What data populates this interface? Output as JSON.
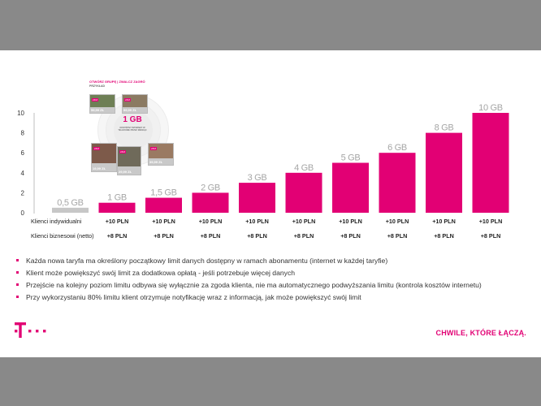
{
  "chart_data": {
    "type": "bar",
    "categories": [
      "0,5 GB",
      "1 GB",
      "1,5 GB",
      "2 GB",
      "3 GB",
      "4 GB",
      "5 GB",
      "6 GB",
      "8 GB",
      "10 GB"
    ],
    "values": [
      0.5,
      1,
      1.5,
      2,
      3,
      4,
      5,
      6,
      8,
      10
    ],
    "data_labels": [
      "0,5 GB",
      "1 GB",
      "1,5 GB",
      "2 GB",
      "3 GB",
      "4 GB",
      "5 GB",
      "6 GB",
      "8 GB",
      "10 GB"
    ],
    "yticks": [
      "0",
      "2",
      "4",
      "6",
      "8",
      "10"
    ],
    "ylim": [
      0,
      10
    ],
    "grid": false,
    "colors": {
      "bar": "#e20074",
      "first_bar": "#c7c7c7",
      "label": "#a6a6a6"
    },
    "table": {
      "rows": [
        {
          "label": "Klienci indywidualni",
          "cells": [
            "",
            "+10 PLN",
            "+10 PLN",
            "+10 PLN",
            "+10 PLN",
            "+10 PLN",
            "+10 PLN",
            "+10 PLN",
            "+10 PLN",
            "+10 PLN"
          ]
        },
        {
          "label": "Klienci biznesowi (netto)",
          "cells": [
            "",
            "+8 PLN",
            "+8 PLN",
            "+8 PLN",
            "+8 PLN",
            "+8 PLN",
            "+8 PLN",
            "+8 PLN",
            "+8 PLN",
            "+8 PLN"
          ]
        }
      ]
    }
  },
  "infographic": {
    "title": "OTWÓRZ GRUPĘ | ZWALCZ ZAGRÓ",
    "subtitle": "PRZYKŁAD",
    "big_label": "1 GB",
    "small_text": "DOSTĘPNY INTERNET W TELEFONIE PRZEZ MIESIĄC",
    "prices": [
      "99,99 ZŁ",
      "29,99 ZŁ",
      "39,99 ZŁ",
      "59,99 ZŁ",
      "19,99 ZŁ"
    ]
  },
  "bullets": [
    "Każda nowa taryfa ma określony początkowy  limit danych dostępny w ramach abonamentu (internet w każdej taryfie)",
    "Klient może powiększyć swój limit za dodatkowa opłatą - jeśli potrzebuje więcej danych",
    "Przejście na kolejny poziom limitu odbywa się wyłącznie za zgoda klienta, nie ma automatycznego podwyższania limitu (kontrola kosztów internetu)",
    "Przy wykorzystaniu 80% limitu klient otrzymuje notyfikację wraz z informacją, jak może powiększyć swój limit"
  ],
  "footer": {
    "slogan": "CHWILE, KTÓRE ŁĄCZĄ.",
    "brand_color": "#e20074"
  }
}
